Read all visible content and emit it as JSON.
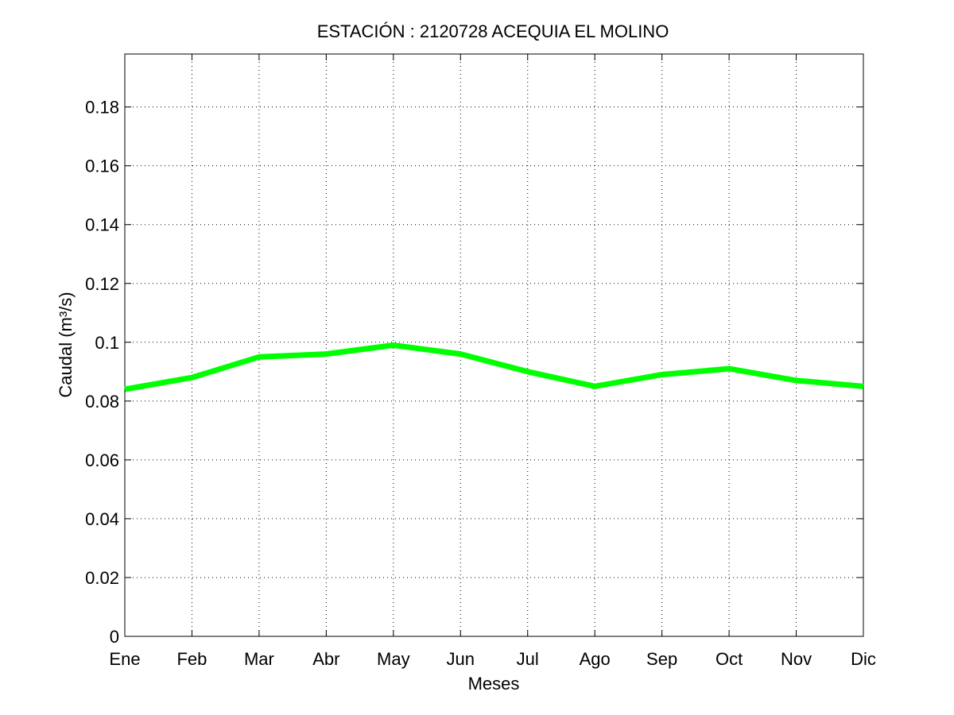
{
  "chart_data": {
    "type": "line",
    "title": "ESTACIÓN :  2120728  ACEQUIA EL MOLINO",
    "xlabel": "Meses",
    "ylabel": "Caudal (m³/s)",
    "categories": [
      "Ene",
      "Feb",
      "Mar",
      "Abr",
      "May",
      "Jun",
      "Jul",
      "Ago",
      "Sep",
      "Oct",
      "Nov",
      "Dic"
    ],
    "yticks": [
      0,
      0.02,
      0.04,
      0.06,
      0.08,
      0.1,
      0.12,
      0.14,
      0.16,
      0.18
    ],
    "ytick_labels": [
      "0",
      "0.02",
      "0.04",
      "0.06",
      "0.08",
      "0.1",
      "0.12",
      "0.14",
      "0.16",
      "0.18"
    ],
    "ylim": [
      0,
      0.198
    ],
    "grid": true,
    "series": [
      {
        "color": "#00ff00",
        "values": [
          0.084,
          0.088,
          0.095,
          0.096,
          0.099,
          0.096,
          0.09,
          0.085,
          0.089,
          0.091,
          0.087,
          0.085
        ]
      }
    ]
  }
}
